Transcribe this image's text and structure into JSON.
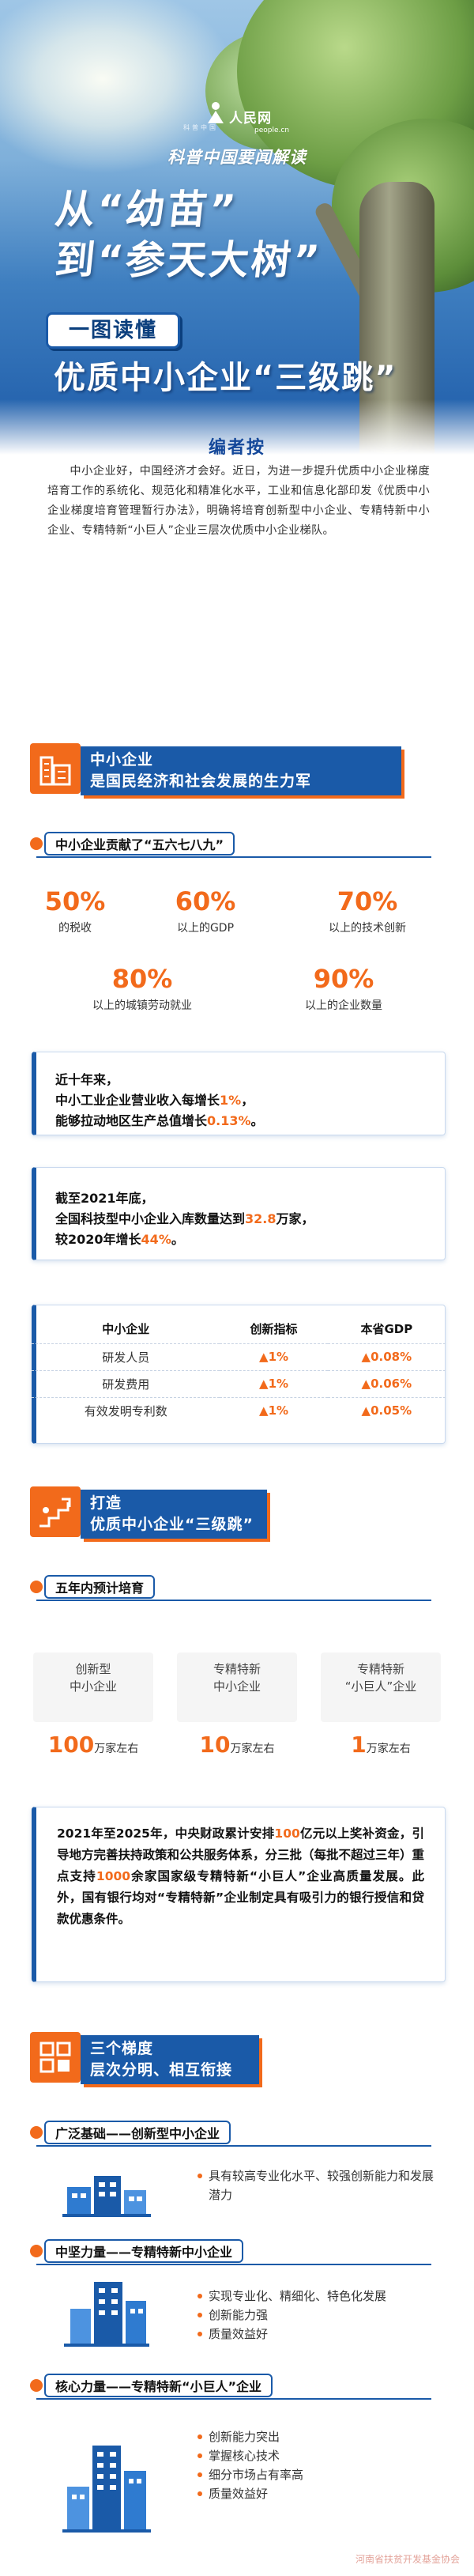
{
  "header": {
    "logo_text": "人民网",
    "logo_url": "people.cn",
    "logo_sub": "科普中国",
    "kicker": "科普中国要闻解读",
    "title_line1": "从“幼苗”",
    "title_line2": "到“参天大树”",
    "badge": "一图读懂",
    "title_line3": "优质中小企业“三级跳”"
  },
  "editor_note": {
    "title": "编者按",
    "body": "中小企业好，中国经济才会好。近日，为进一步提升优质中小企业梯度培育工作的系统化、规范化和精准化水平，工业和信息化部印发《优质中小企业梯度培育管理暂行办法》，明确将培育创新型中小企业、专精特新中小企业、专精特新“小巨人”企业三层次优质中小企业梯队。"
  },
  "section1": {
    "line1": "中小企业",
    "line2": "是国民经济和社会发展的生力军",
    "sub_label": "中小企业贡献了“五六七八九”",
    "stats": [
      {
        "value": "50%",
        "label": "的税收"
      },
      {
        "value": "60%",
        "label": "以上的GDP"
      },
      {
        "value": "70%",
        "label": "以上的技术创新"
      },
      {
        "value": "80%",
        "label": "以上的城镇劳动就业"
      },
      {
        "value": "90%",
        "label": "以上的企业数量"
      }
    ],
    "panel1": {
      "a": "近十年来，",
      "b": "中小工业企业营业收入每增长",
      "c": "1%",
      "d": "，",
      "e": "能够拉动地区生产总值增长",
      "f": "0.13%",
      "g": "。"
    },
    "panel2": {
      "a": "截至2021年底，",
      "b": "全国科技型中小企业入库数量达到",
      "c": "32.8",
      "d": "万家，",
      "e": "较2020年增长",
      "f": "44%",
      "g": "。"
    },
    "table": {
      "headers": [
        "中小企业",
        "创新指标",
        "本省GDP"
      ],
      "rows": [
        [
          "研发人员",
          "▲1%",
          "▲0.08%"
        ],
        [
          "研发费用",
          "▲1%",
          "▲0.06%"
        ],
        [
          "有效发明专利数",
          "▲1%",
          "▲0.05%"
        ]
      ]
    }
  },
  "section2": {
    "line1": "打造",
    "line2": "优质中小企业“三级跳”",
    "sub_label": "五年内预计培育",
    "plans": [
      {
        "line1": "创新型",
        "line2": "中小企业",
        "num": "100",
        "unit": "万家左右"
      },
      {
        "line1": "专精特新",
        "line2": "中小企业",
        "num": "10",
        "unit": "万家左右"
      },
      {
        "line1": "专精特新",
        "line2": "“小巨人”企业",
        "num": "1",
        "unit": "万家左右"
      }
    ],
    "funding": {
      "t1": "2021年至2025年，中央财政累计安排",
      "t2": "100",
      "t3": "亿元以上奖补资金，引导地方完善扶持政策和公共服务体系，分三批（每批不超过三年）重点支持",
      "t4": "1000",
      "t5": "余家国家级专精特新“小巨人”企业高质量发展。此外，国有银行均对“专精特新”企业制定具有吸引力的银行授信和贷款优惠条件。"
    }
  },
  "section3": {
    "line1": "三个梯度",
    "line2": "层次分明、相互衔接",
    "tiers": [
      {
        "label": "广泛基础——创新型中小企业",
        "bullets": [
          "具有较高专业化水平、较强创新能力和发展潜力"
        ]
      },
      {
        "label": "中坚力量——专精特新中小企业",
        "bullets": [
          "实现专业化、精细化、特色化发展",
          "创新能力强",
          "质量效益好"
        ]
      },
      {
        "label": "核心力量——专精特新“小巨人”企业",
        "bullets": [
          "创新能力突出",
          "掌握核心技术",
          "细分市场占有率高",
          "质量效益好"
        ]
      }
    ]
  },
  "watermark": "河南省扶贫开发基金协会",
  "colors": {
    "brand_blue": "#1a5aa8",
    "accent_orange": "#f26a1b"
  }
}
